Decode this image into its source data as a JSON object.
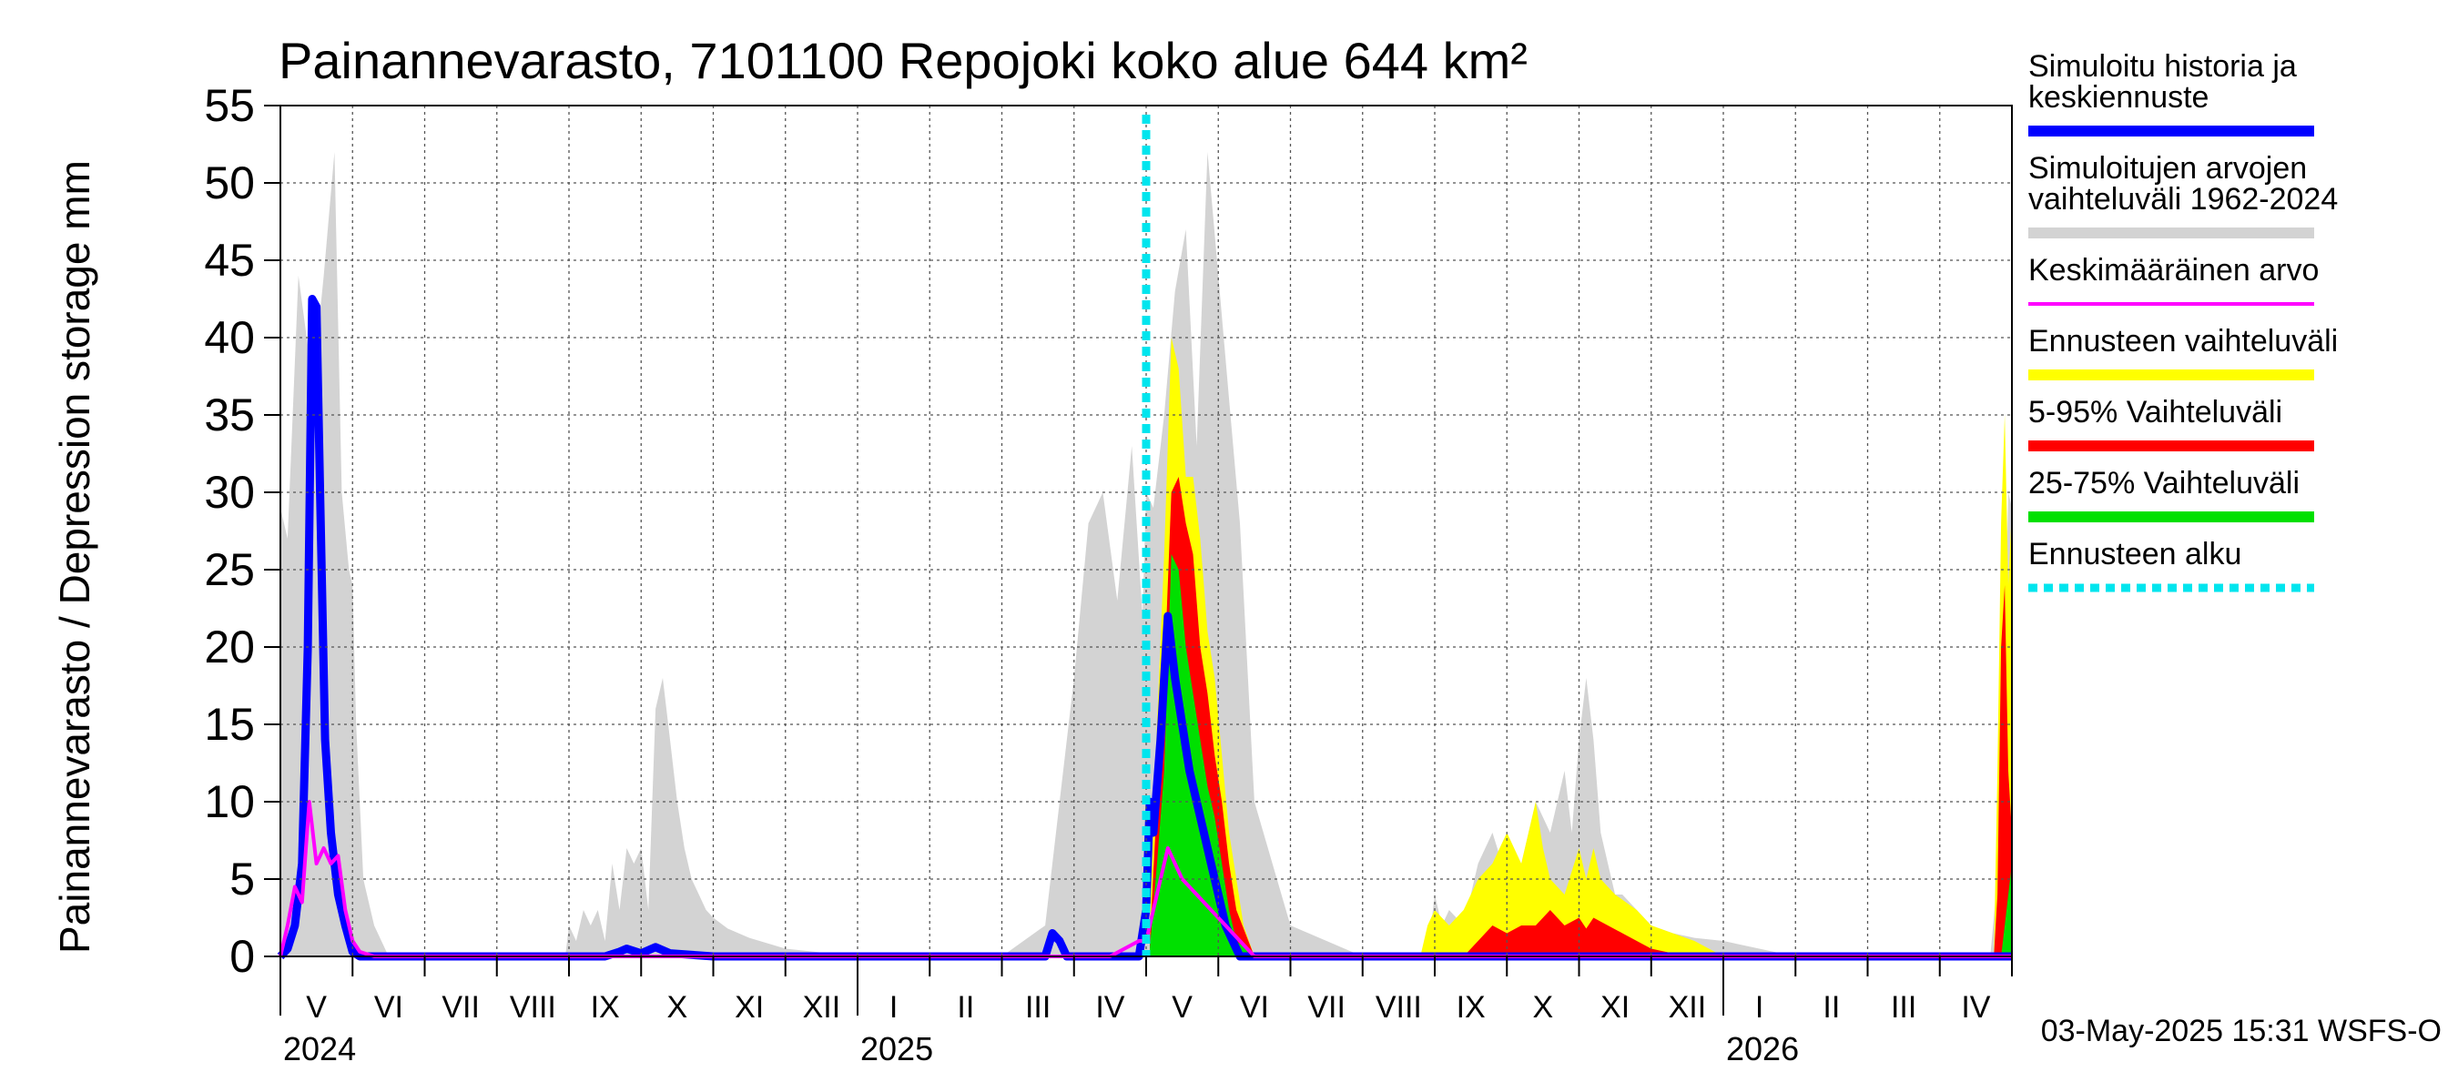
{
  "chart_data": {
    "type": "area",
    "title": "Painannevarasto, 7101100 Repojoki koko alue 644 km²",
    "ylabel": "Painannevarasto / Depression storage    mm",
    "ylim": [
      0,
      55
    ],
    "yticks": [
      0,
      5,
      10,
      15,
      20,
      25,
      30,
      35,
      40,
      45,
      50,
      55
    ],
    "grid": true,
    "legend_position": "right",
    "months": [
      "V",
      "VI",
      "VII",
      "VIII",
      "IX",
      "X",
      "XI",
      "XII",
      "I",
      "II",
      "III",
      "IV",
      "V",
      "VI",
      "VII",
      "VIII",
      "IX",
      "X",
      "XI",
      "XII",
      "I",
      "II",
      "III",
      "IV"
    ],
    "years": [
      "2024",
      "2025",
      "2026"
    ],
    "forecast_start_month": 12,
    "timestamp": "03-May-2025 15:31 WSFS-O",
    "legend": [
      {
        "label": "Simuloitu historia ja",
        "label2": "keskiennuste",
        "color": "#0000ff",
        "style": "solid"
      },
      {
        "label": "Simuloitujen arvojen",
        "label2": "vaihteluväli 1962-2024",
        "color": "#d3d3d3",
        "style": "solid"
      },
      {
        "label": "Keskimääräinen arvo",
        "label2": "",
        "color": "#ff00ff",
        "style": "thin"
      },
      {
        "label": "Ennusteen vaihteluväli",
        "label2": "",
        "color": "#ffff00",
        "style": "solid"
      },
      {
        "label": "5-95% Vaihteluväli",
        "label2": "",
        "color": "#ff0000",
        "style": "solid"
      },
      {
        "label": "25-75% Vaihteluväli",
        "label2": "",
        "color": "#00e000",
        "style": "solid"
      },
      {
        "label": "Ennusteen alku",
        "label2": "",
        "color": "#00e5ee",
        "style": "dotted"
      }
    ],
    "series": [
      {
        "name": "Simuloitujen arvojen vaihteluväli 1962-2024",
        "color": "#d3d3d3",
        "x": [
          0,
          0.1,
          0.25,
          0.45,
          0.6,
          0.75,
          0.85,
          0.95,
          1.0,
          1.05,
          1.15,
          1.3,
          1.5,
          2,
          3,
          3.95,
          4.0,
          4.1,
          4.2,
          4.3,
          4.4,
          4.5,
          4.6,
          4.7,
          4.8,
          4.9,
          5.0,
          5.1,
          5.2,
          5.3,
          5.4,
          5.5,
          5.6,
          5.7,
          5.8,
          5.9,
          6.0,
          6.2,
          6.5,
          7,
          8,
          9,
          10,
          10.6,
          10.8,
          11.0,
          11.2,
          11.4,
          11.6,
          11.8,
          11.95,
          12.0,
          12.1,
          12.25,
          12.4,
          12.55,
          12.7,
          12.85,
          13.0,
          13.15,
          13.3,
          13.5,
          14,
          15,
          15.85,
          15.95,
          16.0,
          16.1,
          16.2,
          16.4,
          16.6,
          16.8,
          17.0,
          17.2,
          17.4,
          17.6,
          17.8,
          17.9,
          18.0,
          18.1,
          18.2,
          18.3,
          18.4,
          18.5,
          18.6,
          18.8,
          19.0,
          19.3,
          19.6,
          20,
          21,
          22,
          23,
          23.7,
          23.8,
          23.9,
          23.95,
          24
        ],
        "y": [
          29,
          27,
          44,
          37,
          44,
          52,
          30,
          25,
          24,
          15,
          5,
          2,
          0,
          0,
          0,
          0,
          2,
          1,
          3,
          2,
          3,
          1,
          6,
          3,
          7,
          6,
          7,
          3,
          16,
          18,
          14,
          10,
          7,
          5,
          4,
          3,
          2.5,
          1.8,
          1.2,
          0.5,
          0,
          0,
          0,
          2,
          10,
          18,
          28,
          30,
          23,
          33,
          22,
          30,
          29,
          35,
          43,
          47,
          33,
          52,
          44,
          36,
          28,
          10,
          2,
          0,
          0,
          2,
          4,
          2,
          3,
          2,
          6,
          8,
          5,
          6,
          10,
          8,
          12,
          8,
          14,
          18,
          14,
          8,
          6,
          4,
          4,
          3,
          2,
          1.5,
          1.2,
          1,
          0,
          0,
          0,
          0,
          5,
          20,
          30,
          29
        ]
      },
      {
        "name": "Ennusteen vaihteluväli",
        "color": "#ffff00",
        "x": [
          12.05,
          12.15,
          12.25,
          12.35,
          12.45,
          12.55,
          12.65,
          12.75,
          12.85,
          12.95,
          13.05,
          13.15,
          13.25,
          13.35,
          13.5,
          15.8,
          15.9,
          16.0,
          16.2,
          16.4,
          16.6,
          16.8,
          17.0,
          17.2,
          17.4,
          17.5,
          17.6,
          17.8,
          18.0,
          18.1,
          18.2,
          18.3,
          18.5,
          18.8,
          19.0,
          19.3,
          19.6,
          20,
          23.75,
          23.8,
          23.85,
          23.9,
          23.95,
          24
        ],
        "y": [
          2,
          15,
          26,
          40,
          38,
          31,
          31,
          27,
          21,
          18,
          13,
          8,
          5,
          2,
          0,
          0,
          2,
          3,
          2,
          3,
          5,
          6,
          8,
          6,
          10,
          7,
          5,
          4,
          7,
          5,
          7,
          5,
          4,
          3,
          2,
          1.5,
          1,
          0,
          0,
          12,
          28,
          35,
          24,
          29
        ]
      },
      {
        "name": "5-95% Vaihteluväli",
        "color": "#ff0000",
        "x": [
          12.05,
          12.15,
          12.25,
          12.35,
          12.45,
          12.55,
          12.65,
          12.75,
          12.85,
          12.95,
          13.05,
          13.15,
          13.25,
          13.5,
          16.4,
          16.6,
          16.8,
          17.0,
          17.2,
          17.4,
          17.6,
          17.8,
          18.0,
          18.1,
          18.2,
          18.4,
          18.6,
          18.8,
          19.0,
          19.3,
          19.6,
          23.75,
          23.8,
          23.85,
          23.9,
          23.95,
          24
        ],
        "y": [
          1,
          10,
          18,
          30,
          31,
          28,
          26,
          20,
          17,
          13,
          10,
          6,
          3,
          0,
          0,
          1,
          2,
          1.5,
          2,
          2,
          3,
          2,
          2.5,
          1.8,
          2.5,
          2,
          1.5,
          1,
          0.5,
          0.2,
          0,
          0,
          4,
          20,
          24,
          12,
          8
        ]
      },
      {
        "name": "25-75% Vaihteluväli",
        "color": "#00e000",
        "x": [
          12.05,
          12.15,
          12.25,
          12.35,
          12.45,
          12.55,
          12.65,
          12.75,
          12.85,
          12.95,
          13.05,
          13.15,
          13.25,
          13.5,
          23.85,
          23.9,
          23.95,
          24
        ],
        "y": [
          0.5,
          6,
          12,
          26,
          25,
          20,
          17,
          14,
          11,
          9,
          6,
          3,
          1,
          0,
          0,
          2,
          4,
          6
        ]
      },
      {
        "name": "Simuloitu historia ja keskiennuste",
        "color": "#0000ff",
        "x": [
          0,
          0.1,
          0.2,
          0.3,
          0.38,
          0.44,
          0.5,
          0.55,
          0.62,
          0.7,
          0.8,
          0.9,
          1.0,
          1.1,
          1.2,
          2,
          4.5,
          4.7,
          4.8,
          5.0,
          5.2,
          5.4,
          6,
          10.5,
          10.6,
          10.7,
          10.8,
          10.9,
          11.5,
          11.9,
          12.0,
          12.05,
          12.1,
          12.2,
          12.3,
          12.4,
          12.5,
          12.6,
          12.7,
          12.8,
          12.9,
          13.0,
          13.1,
          13.2,
          13.3,
          13.5,
          24
        ],
        "y": [
          0,
          0.5,
          2,
          6,
          20,
          42.5,
          42,
          30,
          14,
          8,
          4,
          2,
          0.3,
          0,
          0,
          0,
          0,
          0.3,
          0.5,
          0.2,
          0.6,
          0.2,
          0,
          0,
          0,
          1.5,
          1,
          0,
          0,
          0,
          3,
          10,
          8,
          14,
          22,
          18,
          15,
          12,
          10,
          8,
          6,
          4,
          2,
          1,
          0,
          0,
          0
        ]
      },
      {
        "name": "Keskimääräinen arvo",
        "color": "#ff00ff",
        "x": [
          0,
          0.1,
          0.2,
          0.3,
          0.4,
          0.5,
          0.6,
          0.7,
          0.8,
          0.9,
          1.0,
          1.1,
          1.3,
          2,
          11.5,
          11.7,
          11.9,
          12.0,
          12.1,
          12.2,
          12.3,
          12.4,
          12.5,
          12.7,
          12.9,
          13.1,
          13.3,
          13.5,
          24
        ],
        "y": [
          0,
          2,
          4.5,
          3.5,
          10,
          6,
          7,
          6,
          6.5,
          3,
          1,
          0.3,
          0,
          0,
          0,
          0.5,
          1,
          1,
          3,
          5,
          7,
          6,
          5,
          4,
          3,
          2,
          1,
          0,
          0
        ]
      }
    ]
  }
}
